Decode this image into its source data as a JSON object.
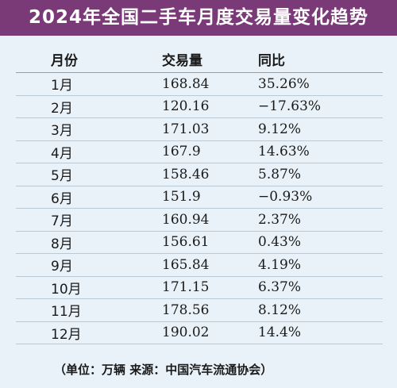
{
  "title": "2024年全国二手车月度交易量变化趋势",
  "columns": {
    "month": "月份",
    "volume": "交易量",
    "yoy": "同比"
  },
  "rows": [
    {
      "month": "1月",
      "volume": "168.84",
      "yoy": "35.26%"
    },
    {
      "month": "2月",
      "volume": "120.16",
      "yoy": "−17.63%"
    },
    {
      "month": "3月",
      "volume": "171.03",
      "yoy": "9.12%"
    },
    {
      "month": "4月",
      "volume": "167.9",
      "yoy": "14.63%"
    },
    {
      "month": "5月",
      "volume": "158.46",
      "yoy": "5.87%"
    },
    {
      "month": "6月",
      "volume": "151.9",
      "yoy": "−0.93%"
    },
    {
      "month": "7月",
      "volume": "160.94",
      "yoy": "2.37%"
    },
    {
      "month": "8月",
      "volume": "156.61",
      "yoy": "0.43%"
    },
    {
      "month": "9月",
      "volume": "165.84",
      "yoy": "4.19%"
    },
    {
      "month": "10月",
      "volume": "171.15",
      "yoy": "6.37%"
    },
    {
      "month": "11月",
      "volume": "178.56",
      "yoy": "8.12%"
    },
    {
      "month": "12月",
      "volume": "190.02",
      "yoy": "14.4%"
    }
  ],
  "footnote": "（单位：万辆  来源：中国汽车流通协会）",
  "colors": {
    "title_bg": "#7a3a78",
    "page_bg": "#e9f2f8",
    "rule": "#b9c9d6"
  }
}
